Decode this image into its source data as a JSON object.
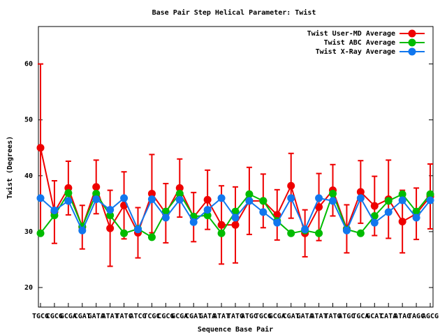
{
  "chart_data": {
    "type": "line",
    "title": "Base Pair Step Helical Parameter: Twist",
    "x_label": "Sequence Base Pair",
    "y_label": "Twist (Degrees)",
    "categories": [
      "TGCG",
      "CGCG",
      "GCGA",
      "CGAT",
      "GATA",
      "ATAT",
      "TATC",
      "ATCG",
      "TCGC",
      "CGCG",
      "GCGA",
      "CGAT",
      "GATA",
      "ATAT",
      "TATG",
      "ATGC",
      "TGCG",
      "GCGA",
      "CGAT",
      "GATA",
      "ATAT",
      "TATG",
      "ATGC",
      "TGCA",
      "GCAT",
      "CATA",
      "ATAG",
      "TAGC",
      "AGCG"
    ],
    "ylim": [
      16.5,
      66.7
    ],
    "yticks": [
      20,
      30,
      40,
      50,
      60
    ],
    "legend": "top-right",
    "series": [
      {
        "name": "Twist User-MD Average",
        "color": "#ee0000",
        "values": [
          45,
          33.5,
          37.8,
          30.8,
          38,
          30.6,
          34.7,
          29.8,
          36.8,
          33.3,
          37.8,
          32.6,
          35.7,
          31.2,
          31.2,
          35.5,
          35.5,
          33,
          38.2,
          29.7,
          34.4,
          37.4,
          30.5,
          37.1,
          34.6,
          35.8,
          31.8,
          33.2,
          36.3
        ],
        "errors": [
          15,
          5.6,
          4.8,
          3.9,
          4.8,
          6.8,
          6,
          4.5,
          7,
          5.3,
          5.2,
          4.4,
          5.3,
          7,
          6.8,
          6,
          4.8,
          4.5,
          5.8,
          4.2,
          6,
          4.6,
          4.3,
          5.6,
          5.3,
          7,
          5.6,
          4.6,
          5.8
        ]
      },
      {
        "name": "Twist ABC Average",
        "color": "#00bb00",
        "values": [
          29.7,
          32.9,
          36.9,
          30.9,
          36.8,
          32.9,
          29.7,
          30.5,
          29.0,
          33.6,
          36.8,
          32.7,
          32.9,
          29.7,
          33.6,
          36.7,
          35.5,
          31.9,
          29.7,
          30.2,
          29.7,
          36.8,
          30.4,
          29.7,
          32.8,
          35.5,
          36.7,
          33.6,
          36.7
        ]
      },
      {
        "name": "Twist X-Ray Average",
        "color": "#1177ee",
        "values": [
          36,
          33.8,
          35.5,
          30.2,
          35.8,
          33.9,
          36,
          30.4,
          35.8,
          32.5,
          35.7,
          31.7,
          33.9,
          36,
          32.5,
          35.5,
          33.5,
          31.6,
          36,
          30.4,
          36,
          35.5,
          30.2,
          36,
          31.6,
          33.5,
          35.6,
          32.5,
          35.6
        ]
      }
    ]
  }
}
